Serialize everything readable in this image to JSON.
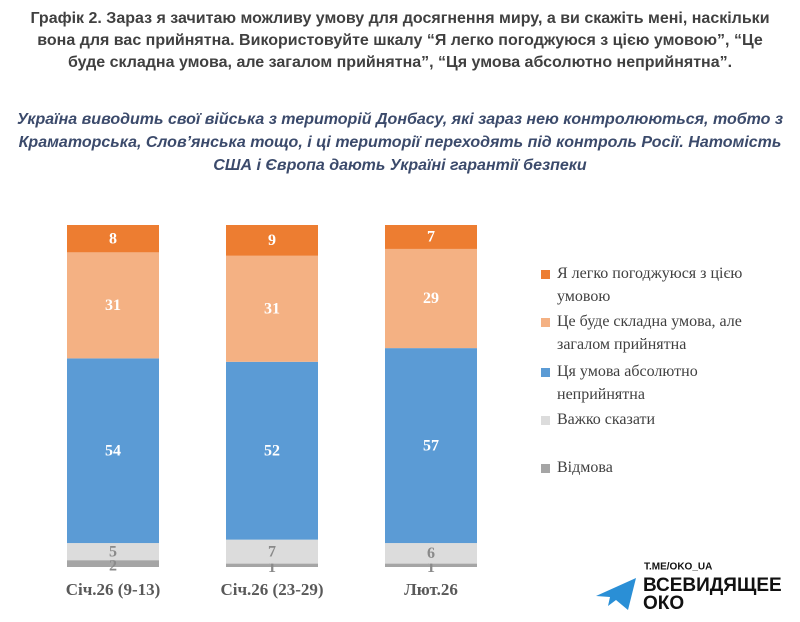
{
  "chart_data": {
    "type": "stacked_bar",
    "title": "Графік 2. Зараз я зачитаю можливу умову для досягнення миру, а ви скажіть мені, наскільки вона для вас прийнятна. Використовуйте шкалу “Я легко погоджуюся з цією умовою”, “Це буде складна умова, але загалом прийнятна”, “Ця умова абсолютно неприйнятна”.",
    "subtitle": "Україна виводить свої війська з територій Донбасу, які зараз нею контролюються, тобто з Краматорська, Слов’янська тощо, і ці території переходять під контроль Росії. Натомість США і Європа дають Україні гарантії безпеки",
    "categories": [
      "Січ.26 (9-13)",
      "Січ.26 (23-29)",
      "Лют.26"
    ],
    "series": [
      {
        "name": "Відмова",
        "color": "#a5a5a5",
        "values": [
          2,
          1,
          1
        ]
      },
      {
        "name": "Важко сказати",
        "color": "#dcdcdc",
        "values": [
          5,
          7,
          6
        ]
      },
      {
        "name": "Ця умова абсолютно неприйнятна",
        "color": "#5b9bd5",
        "values": [
          54,
          52,
          57
        ]
      },
      {
        "name": "Це буде складна умова, але загалом прийнятна",
        "color": "#f4b183",
        "values": [
          31,
          31,
          29
        ]
      },
      {
        "name": "Я легко погоджуюся з цією умовою",
        "color": "#ed7d31",
        "values": [
          8,
          9,
          7
        ]
      }
    ],
    "legend": "right"
  },
  "watermark": {
    "url": "T.ME/OKO_UA",
    "brand": [
      "ВСЕВИДЯЩЕЕ",
      "ОКО"
    ]
  }
}
